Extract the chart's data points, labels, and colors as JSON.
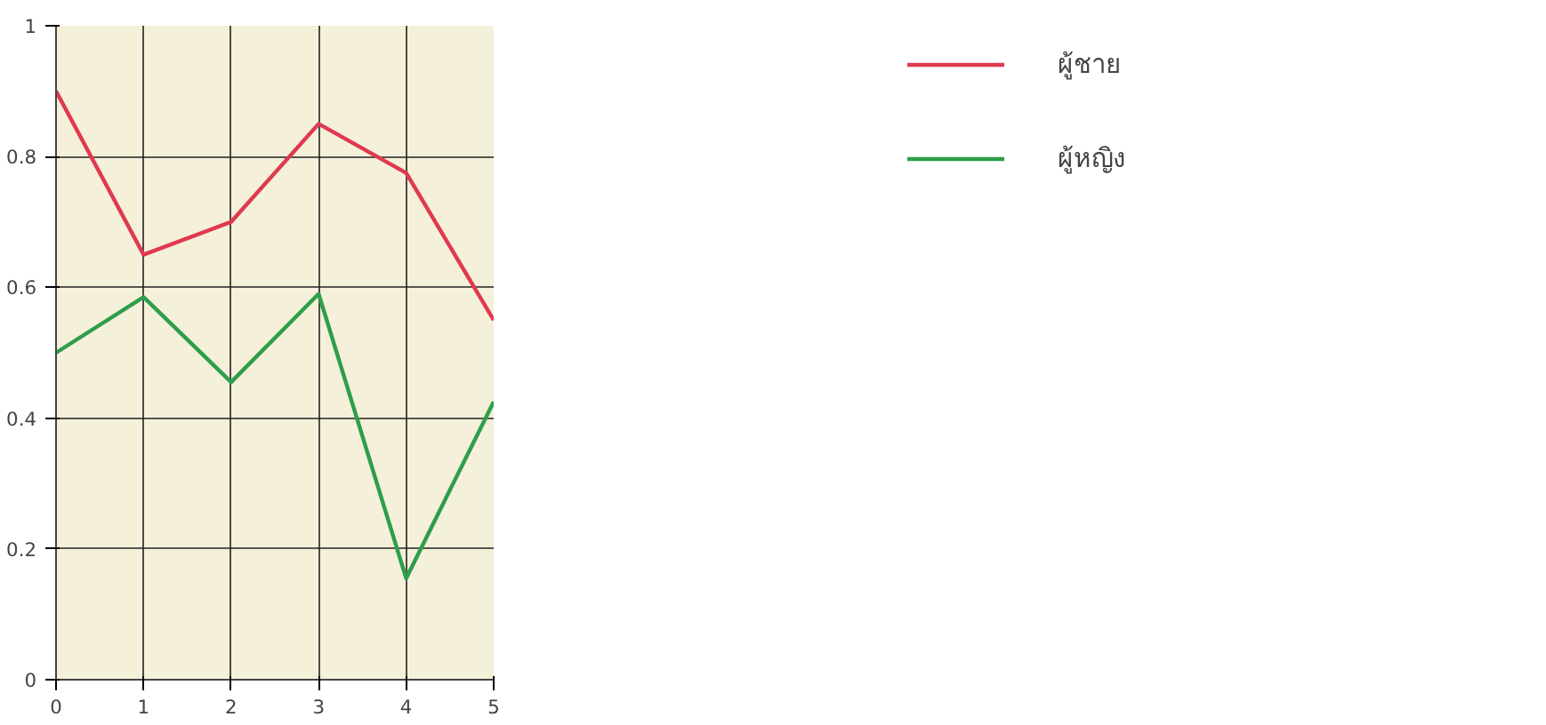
{
  "chart_data": {
    "type": "line",
    "x": [
      0,
      1,
      2,
      3,
      4,
      5
    ],
    "series": [
      {
        "name": "ผู้ชาย",
        "color": "#e0394f",
        "values": [
          0.9,
          0.65,
          0.7,
          0.85,
          0.775,
          0.55
        ]
      },
      {
        "name": "ผู้หญิง",
        "color": "#2e9e4a",
        "values": [
          0.5,
          0.585,
          0.455,
          0.59,
          0.155,
          0.425
        ]
      }
    ],
    "xlim": [
      0,
      5
    ],
    "xticks": [
      0,
      1,
      2,
      3,
      4,
      5
    ],
    "ylim": [
      0,
      1
    ],
    "yticks": [
      0,
      0.2,
      0.4,
      0.6,
      0.8,
      1
    ],
    "grid": true,
    "legend": "top right",
    "marker": "none",
    "line_style": "solid"
  }
}
